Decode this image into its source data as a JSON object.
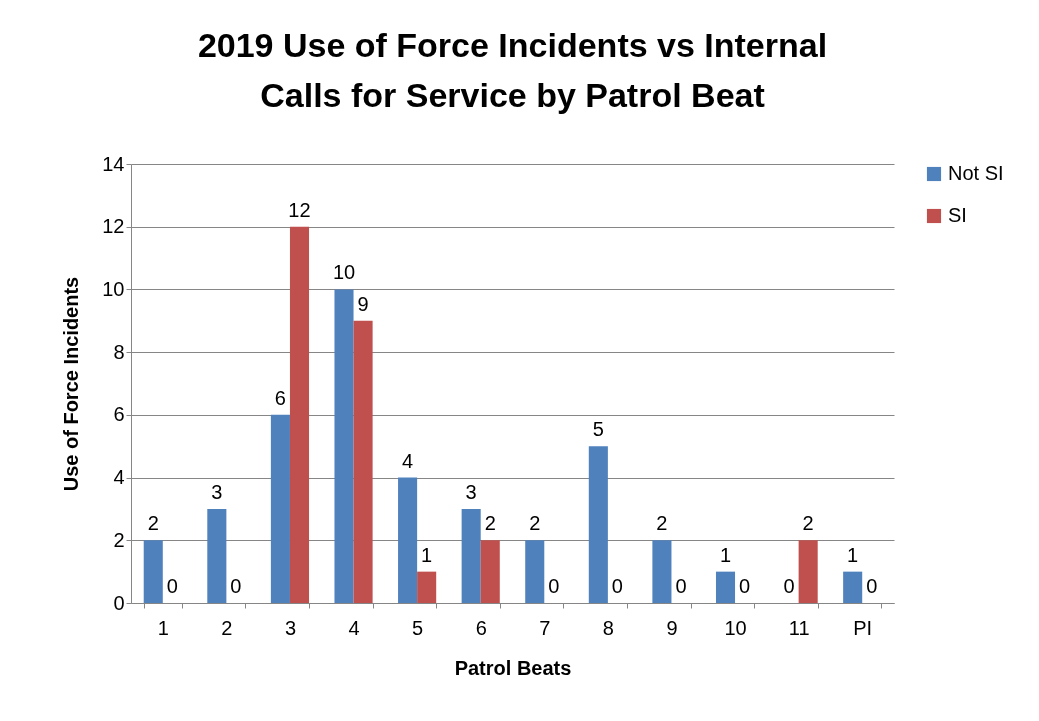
{
  "chart_data": {
    "type": "bar",
    "title": "2019 Use of Force Incidents vs Internal Calls for Service by Patrol Beat",
    "xlabel": "Patrol Beats",
    "ylabel": "Use of Force Incidents",
    "categories": [
      "1",
      "2",
      "3",
      "4",
      "5",
      "6",
      "7",
      "8",
      "9",
      "10",
      "11",
      "PI"
    ],
    "series": [
      {
        "name": "Not SI",
        "color": "#4f81bd",
        "values": [
          2,
          3,
          6,
          10,
          4,
          3,
          2,
          5,
          2,
          1,
          0,
          1
        ]
      },
      {
        "name": "SI",
        "color": "#c0504d",
        "values": [
          0,
          0,
          12,
          9,
          1,
          2,
          0,
          0,
          0,
          0,
          2,
          0
        ]
      }
    ],
    "ylim": [
      0,
      14
    ],
    "yticks": [
      0,
      2,
      4,
      6,
      8,
      10,
      12,
      14
    ],
    "grid": "y",
    "legend": "right",
    "data_labels": true
  }
}
